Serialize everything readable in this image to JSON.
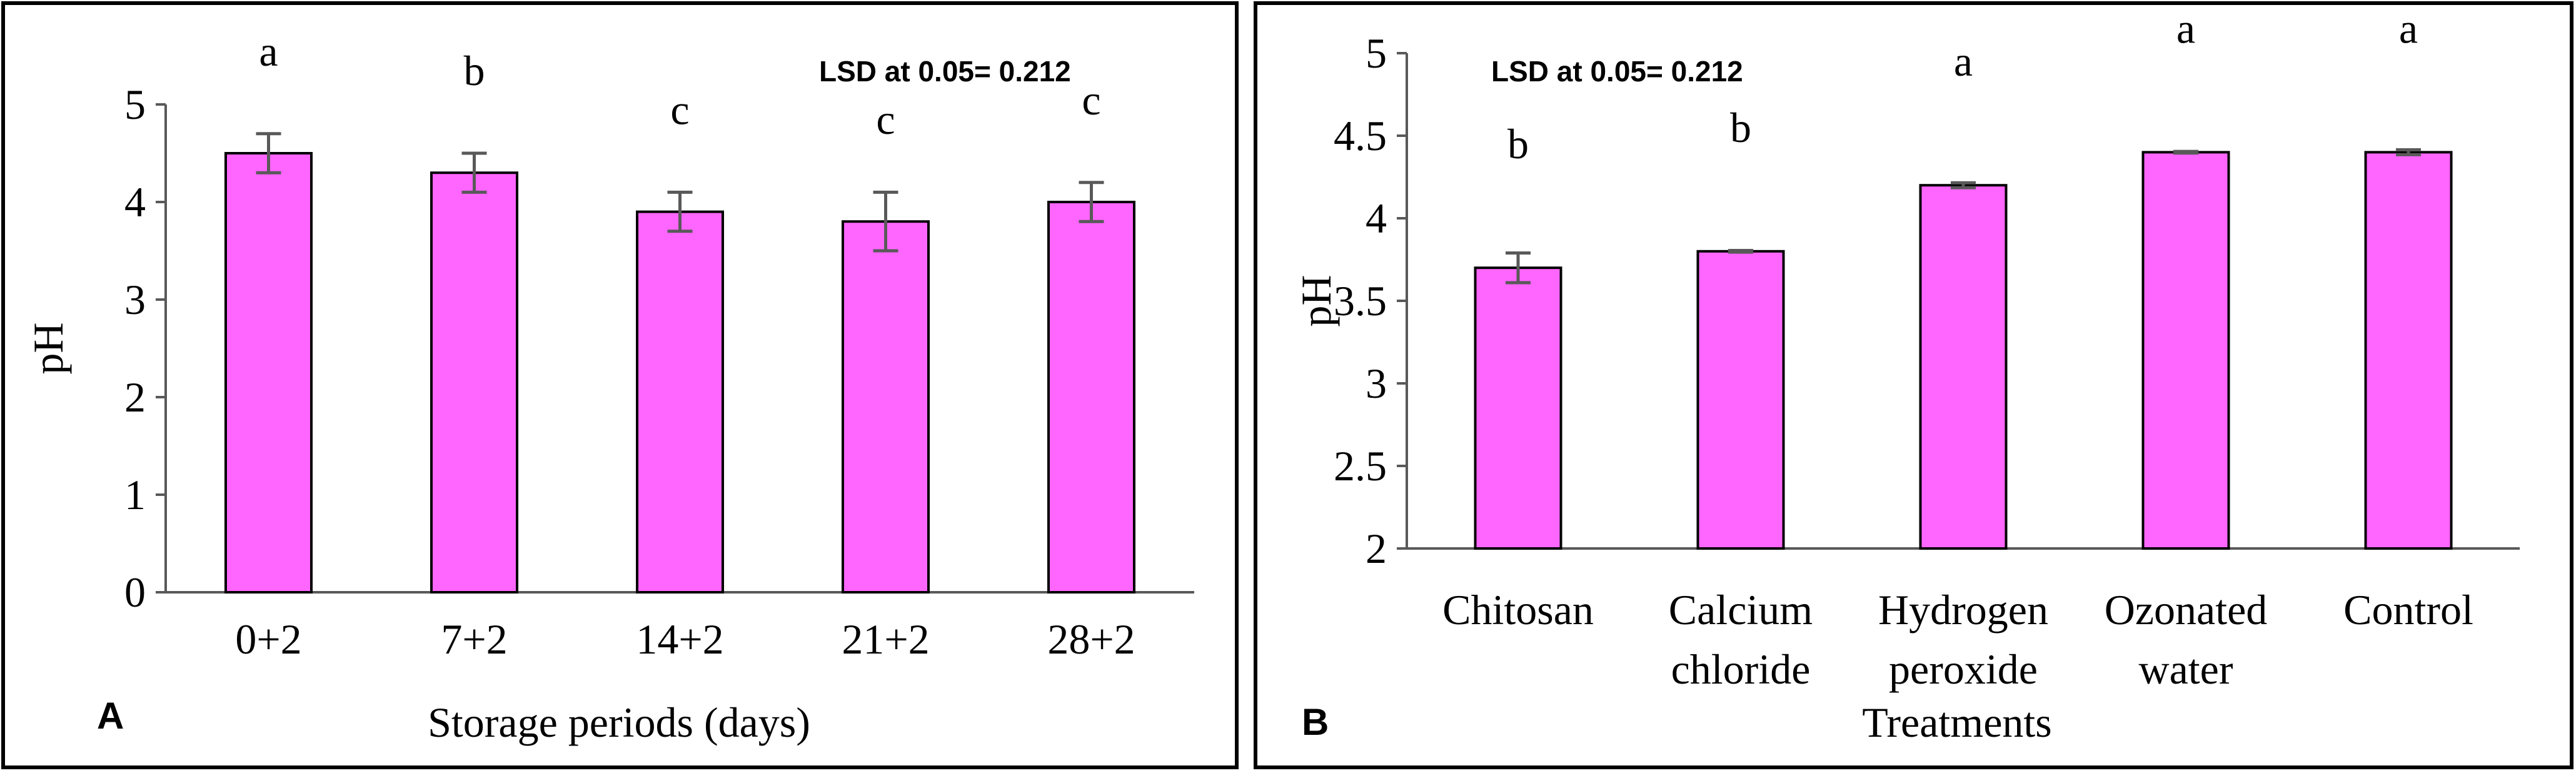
{
  "colors": {
    "bar": "#FF66FF",
    "bar_edge": "#000000",
    "error_bar": "#595959",
    "axis": "#595959",
    "frame": "#000000"
  },
  "chart_data": [
    {
      "type": "bar",
      "panel_label": "A",
      "title": "",
      "xlabel": "Storage periods (days)",
      "ylabel": "pH",
      "ylim": [
        0,
        5
      ],
      "yticks": [
        "0",
        "1",
        "2",
        "3",
        "4",
        "5"
      ],
      "ytick_values": [
        0,
        1,
        2,
        3,
        4,
        5
      ],
      "grid": false,
      "annotation": "LSD at 0.05= 0.212",
      "categories": [
        [
          "0+2"
        ],
        [
          "7+2"
        ],
        [
          "14+2"
        ],
        [
          "21+2"
        ],
        [
          "28+2"
        ]
      ],
      "values": [
        4.5,
        4.3,
        3.9,
        3.8,
        4.0
      ],
      "errors": [
        0.2,
        0.2,
        0.2,
        0.3,
        0.2
      ],
      "letters": [
        "a",
        "b",
        "c",
        "c",
        "c"
      ]
    },
    {
      "type": "bar",
      "panel_label": "B",
      "title": "",
      "xlabel": "Treatments",
      "ylabel": "pH",
      "ylim": [
        2,
        5
      ],
      "yticks": [
        "2",
        "2.5",
        "3",
        "3.5",
        "4",
        "4.5",
        "5"
      ],
      "ytick_values": [
        2,
        2.5,
        3,
        3.5,
        4,
        4.5,
        5
      ],
      "grid": false,
      "annotation": "LSD at 0.05= 0.212",
      "categories": [
        [
          "Chitosan"
        ],
        [
          "Calcium",
          "chloride"
        ],
        [
          "Hydrogen",
          "peroxide"
        ],
        [
          "Ozonated",
          "water"
        ],
        [
          "Control"
        ]
      ],
      "values": [
        3.7,
        3.8,
        4.2,
        4.4,
        4.4
      ],
      "errors": [
        0.09,
        0.005,
        0.015,
        0.005,
        0.015
      ],
      "letters": [
        "b",
        "b",
        "a",
        "a",
        "a"
      ]
    }
  ]
}
